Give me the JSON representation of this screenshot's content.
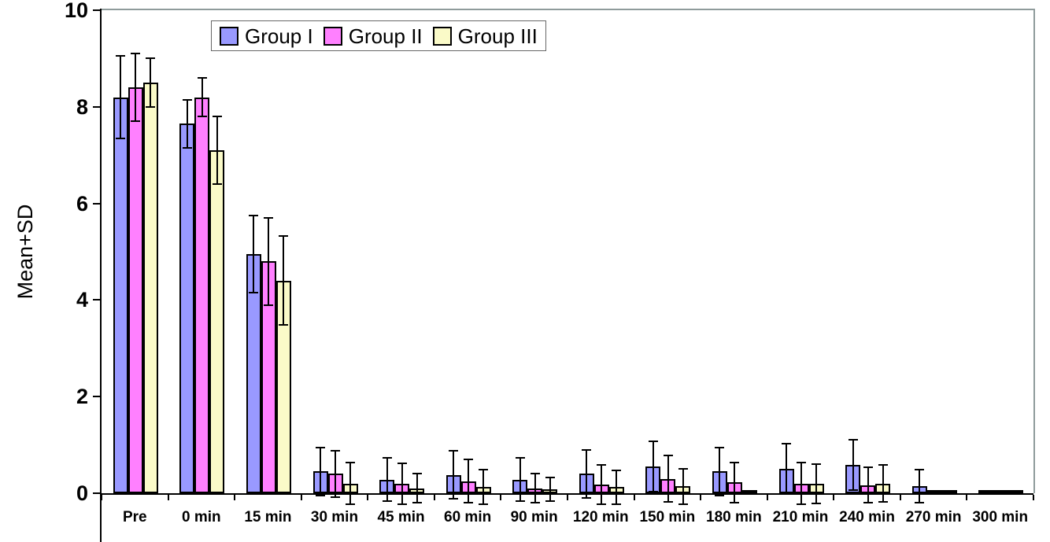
{
  "chart_data": {
    "type": "bar",
    "title": "",
    "ylabel": "Mean+SD",
    "xlabel": "",
    "ylim": [
      0,
      10
    ],
    "yticks": [
      0,
      2,
      4,
      6,
      8,
      10
    ],
    "grid": false,
    "error_bars": "plus-minus SD whiskers on every bar",
    "legend_position": "top-center inside plot area",
    "legend_labels": [
      "Group I",
      "Group II",
      "Group III"
    ],
    "categories": [
      "Pre",
      "0 min",
      "15 min",
      "30 min",
      "45 min",
      "60 min",
      "90 min",
      "120 min",
      "150 min",
      "180 min",
      "210 min",
      "240 min",
      "270 min",
      "300 min"
    ],
    "series": [
      {
        "name": "Group I",
        "color": "#9999FF",
        "values": [
          8.2,
          7.65,
          4.95,
          0.45,
          0.28,
          0.38,
          0.28,
          0.4,
          0.55,
          0.45,
          0.5,
          0.58,
          0.15,
          0.02
        ],
        "sd": [
          0.85,
          0.5,
          0.8,
          0.5,
          0.45,
          0.5,
          0.45,
          0.5,
          0.52,
          0.5,
          0.52,
          0.52,
          0.34,
          0
        ]
      },
      {
        "name": "Group II",
        "color": "#FF80FF",
        "values": [
          8.4,
          8.2,
          4.8,
          0.4,
          0.2,
          0.25,
          0.1,
          0.18,
          0.3,
          0.22,
          0.2,
          0.17,
          0.02,
          0.02
        ],
        "sd": [
          0.7,
          0.4,
          0.9,
          0.48,
          0.42,
          0.45,
          0.3,
          0.4,
          0.48,
          0.42,
          0.43,
          0.36,
          0,
          0
        ]
      },
      {
        "name": "Group III",
        "color": "#FAFAC8",
        "values": [
          8.5,
          7.1,
          4.4,
          0.2,
          0.1,
          0.13,
          0.08,
          0.13,
          0.14,
          0.02,
          0.2,
          0.2,
          0.02,
          0.02
        ],
        "sd": [
          0.5,
          0.7,
          0.92,
          0.43,
          0.3,
          0.36,
          0.24,
          0.35,
          0.36,
          0,
          0.41,
          0.38,
          0,
          0
        ]
      }
    ]
  }
}
